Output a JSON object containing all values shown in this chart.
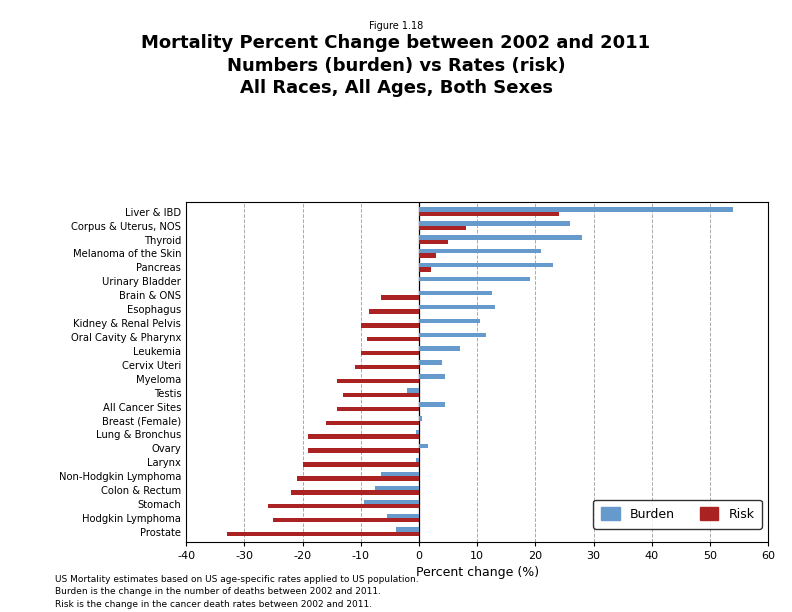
{
  "figure_label": "Figure 1.18",
  "title_line1": "Mortality Percent Change between 2002 and 2011",
  "title_line2": "Numbers (burden) vs Rates (risk)",
  "title_line3": "All Races, All Ages, Both Sexes",
  "xlabel": "Percent change (%)",
  "categories": [
    "Prostate",
    "Hodgkin Lymphoma",
    "Stomach",
    "Colon & Rectum",
    "Non-Hodgkin Lymphoma",
    "Larynx",
    "Ovary",
    "Lung & Bronchus",
    "Breast (Female)",
    "All Cancer Sites",
    "Testis",
    "Myeloma",
    "Cervix Uteri",
    "Leukemia",
    "Oral Cavity & Pharynx",
    "Kidney & Renal Pelvis",
    "Esophagus",
    "Brain & ONS",
    "Urinary Bladder",
    "Pancreas",
    "Melanoma of the Skin",
    "Thyroid",
    "Corpus & Uterus, NOS",
    "Liver & IBD"
  ],
  "burden": [
    -4.0,
    -5.5,
    -9.5,
    -7.5,
    -6.5,
    -0.5,
    1.5,
    -0.5,
    0.5,
    4.5,
    -2.0,
    4.5,
    4.0,
    7.0,
    11.5,
    10.5,
    13.0,
    12.5,
    19.0,
    23.0,
    21.0,
    28.0,
    26.0,
    54.0
  ],
  "risk": [
    -33.0,
    -25.0,
    -26.0,
    -22.0,
    -21.0,
    -20.0,
    -19.0,
    -19.0,
    -16.0,
    -14.0,
    -13.0,
    -14.0,
    -11.0,
    -10.0,
    -9.0,
    -10.0,
    -8.5,
    -6.5,
    0.0,
    2.0,
    3.0,
    5.0,
    8.0,
    24.0
  ],
  "burden_color": "#6699cc",
  "risk_color": "#aa2222",
  "xlim": [
    -40,
    60
  ],
  "xticks": [
    -40,
    -30,
    -20,
    -10,
    0,
    10,
    20,
    30,
    40,
    50,
    60
  ],
  "footnote_lines": [
    "US Mortality estimates based on US age-specific rates applied to US population.",
    "Burden is the change in the number of deaths between 2002 and 2011.",
    "Risk is the change in the cancer death rates between 2002 and 2011."
  ],
  "background_color": "#ffffff"
}
